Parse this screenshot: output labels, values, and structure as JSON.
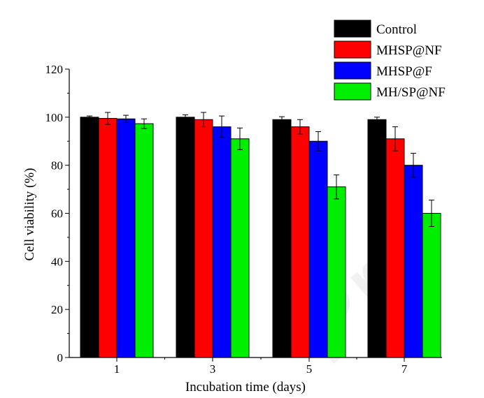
{
  "chart_data": {
    "type": "bar",
    "title": "",
    "xlabel": "Incubation time (days)",
    "ylabel": "Cell viability (%)",
    "categories": [
      "1",
      "3",
      "5",
      "7"
    ],
    "ylim": [
      0,
      120
    ],
    "yticks": [
      0,
      20,
      40,
      60,
      80,
      100,
      120
    ],
    "legend_position": "top-right",
    "series": [
      {
        "name": "Control",
        "color": "#000000",
        "values": [
          100,
          100,
          99,
          99
        ],
        "errors": [
          0.5,
          1.0,
          1.2,
          1.0
        ]
      },
      {
        "name": "MHSP@NF",
        "color": "#ff0000",
        "values": [
          99.5,
          99,
          96,
          91
        ],
        "errors": [
          2.5,
          3.0,
          3.0,
          5.0
        ]
      },
      {
        "name": "MHSP@F",
        "color": "#0000ff",
        "values": [
          99.3,
          96,
          90,
          80
        ],
        "errors": [
          1.5,
          4.5,
          4.0,
          5.0
        ]
      },
      {
        "name": "MH/SP@NF",
        "color": "#00ee00",
        "values": [
          97.3,
          91,
          71,
          60
        ],
        "errors": [
          2.0,
          4.5,
          5.0,
          5.5
        ]
      }
    ]
  },
  "watermark": "Pre"
}
